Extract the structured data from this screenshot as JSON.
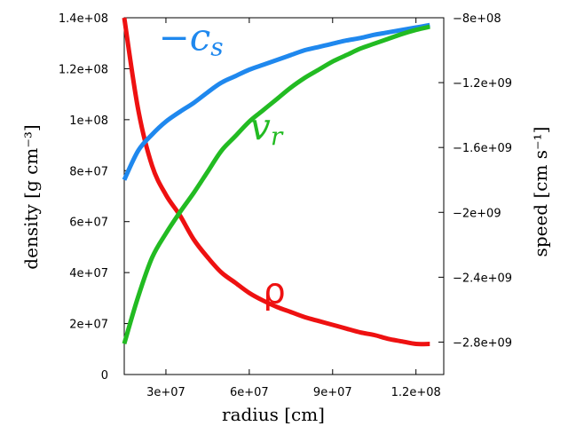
{
  "chart_data": {
    "type": "line",
    "xlabel": "radius [cm]",
    "ylabel": "density [g cm⁻³]",
    "y2label": "speed [cm s⁻¹]",
    "xlim": [
      15000000,
      130000000
    ],
    "ylim": [
      0,
      140000000
    ],
    "y2lim": [
      -3000000000,
      -800000000
    ],
    "x_ticks": [
      {
        "value": 30000000,
        "label": "3e+07"
      },
      {
        "value": 60000000,
        "label": "6e+07"
      },
      {
        "value": 90000000,
        "label": "9e+07"
      },
      {
        "value": 120000000,
        "label": "1.2e+08"
      }
    ],
    "y_ticks": [
      {
        "value": 0,
        "label": "0"
      },
      {
        "value": 20000000,
        "label": "2e+07"
      },
      {
        "value": 40000000,
        "label": "4e+07"
      },
      {
        "value": 60000000,
        "label": "6e+07"
      },
      {
        "value": 80000000,
        "label": "8e+07"
      },
      {
        "value": 100000000,
        "label": "1e+08"
      },
      {
        "value": 120000000,
        "label": "1.2e+08"
      },
      {
        "value": 140000000,
        "label": "1.4e+08"
      }
    ],
    "y2_ticks": [
      {
        "value": -800000000,
        "label": "−8e+08"
      },
      {
        "value": -1200000000,
        "label": "−1.2e+09"
      },
      {
        "value": -1600000000,
        "label": "−1.6e+09"
      },
      {
        "value": -2000000000,
        "label": "−2e+09"
      },
      {
        "value": -2400000000,
        "label": "−2.4e+09"
      },
      {
        "value": -2800000000,
        "label": "−2.8e+09"
      }
    ],
    "grid": false,
    "series": [
      {
        "name": "ρ",
        "axis": "left",
        "color": "#ee1111",
        "label_x": 69000000,
        "label_y": 28000000,
        "x": [
          15000000,
          20000000,
          25000000,
          30000000,
          35000000,
          40000000,
          45000000,
          50000000,
          55000000,
          60000000,
          65000000,
          70000000,
          75000000,
          80000000,
          85000000,
          90000000,
          95000000,
          100000000,
          105000000,
          110000000,
          115000000,
          120000000,
          125000000
        ],
        "values": [
          140000000,
          104000000,
          82000000,
          70500000,
          62500000,
          53000000,
          46000000,
          40000000,
          36000000,
          32000000,
          29000000,
          26500000,
          24500000,
          22500000,
          21000000,
          19500000,
          18000000,
          16500000,
          15500000,
          14000000,
          13000000,
          12000000,
          12000000
        ]
      },
      {
        "name": "−c",
        "name_sub": "s",
        "axis": "right",
        "color": "#1f88ee",
        "label_x": 39000000,
        "label_y2": -1000000000,
        "x": [
          15000000,
          20000000,
          25000000,
          30000000,
          35000000,
          40000000,
          45000000,
          50000000,
          55000000,
          60000000,
          65000000,
          70000000,
          75000000,
          80000000,
          85000000,
          90000000,
          95000000,
          100000000,
          105000000,
          110000000,
          115000000,
          120000000,
          125000000
        ],
        "values": [
          -1800000000,
          -1620000000,
          -1520000000,
          -1440000000,
          -1380000000,
          -1325000000,
          -1260000000,
          -1200000000,
          -1160000000,
          -1120000000,
          -1090000000,
          -1060000000,
          -1030000000,
          -1000000000,
          -980000000,
          -960000000,
          -940000000,
          -925000000,
          -905000000,
          -890000000,
          -875000000,
          -860000000,
          -845000000
        ]
      },
      {
        "name": "v",
        "name_sub": "r",
        "axis": "right",
        "color": "#22bb22",
        "label_x": 66000000,
        "label_y2": -1550000000,
        "x": [
          15000000,
          20000000,
          25000000,
          30000000,
          35000000,
          40000000,
          45000000,
          50000000,
          55000000,
          60000000,
          65000000,
          70000000,
          75000000,
          80000000,
          85000000,
          90000000,
          95000000,
          100000000,
          105000000,
          110000000,
          115000000,
          120000000,
          125000000
        ],
        "values": [
          -2810000000,
          -2520000000,
          -2280000000,
          -2130000000,
          -2000000000,
          -1880000000,
          -1750000000,
          -1620000000,
          -1530000000,
          -1440000000,
          -1370000000,
          -1300000000,
          -1230000000,
          -1170000000,
          -1120000000,
          -1070000000,
          -1030000000,
          -990000000,
          -960000000,
          -930000000,
          -900000000,
          -875000000,
          -855000000
        ]
      }
    ]
  }
}
